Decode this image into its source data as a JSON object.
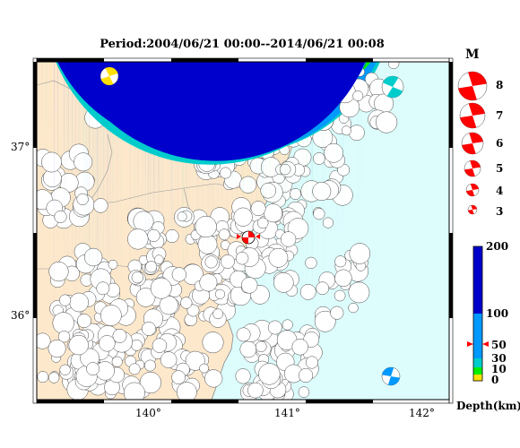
{
  "title": "Period:2004/06/21 00:00--2014/06/21 00:08",
  "axes": {
    "x_ticks": [
      "140°",
      "141°",
      "142°"
    ],
    "y_ticks": [
      "37°",
      "36°"
    ]
  },
  "magnitude_legend": {
    "header": "M",
    "scale": [
      "8",
      "7",
      "6",
      "5",
      "4",
      "3"
    ]
  },
  "depth_legend": {
    "title": "Depth(km)",
    "ticks": [
      "200",
      "100",
      "50",
      "30",
      "10",
      "0"
    ],
    "colors": [
      "#ffe000",
      "#00ee00",
      "#00cccc",
      "#0099ff",
      "#0000cc"
    ]
  },
  "colors": {
    "land": "#fde8cc",
    "sea": "#ddfcfc",
    "mainshock": "#ff0000"
  },
  "icons": [
    "beachball-icon",
    "star-icon"
  ]
}
